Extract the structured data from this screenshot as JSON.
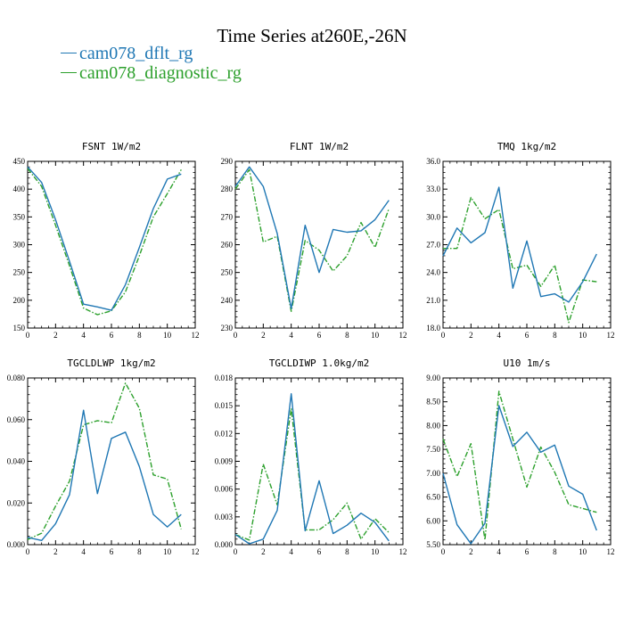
{
  "title": "Time Series at260E,-26N",
  "legend": [
    {
      "name": "cam078_dflt_rg",
      "color": "#1f77b4"
    },
    {
      "name": "cam078_diagnostic_rg",
      "color": "#2ca02c"
    }
  ],
  "chart_data": [
    {
      "type": "line",
      "title": "FSNT   1W/m2",
      "x": [
        0,
        1,
        2,
        3,
        4,
        5,
        6,
        7,
        8,
        9,
        10,
        11
      ],
      "xlim": [
        0,
        12
      ],
      "xticks": [
        "0",
        "2",
        "4",
        "6",
        "8",
        "10",
        "12"
      ],
      "ylim": [
        150,
        450
      ],
      "yticks": [
        "150",
        "200",
        "250",
        "300",
        "350",
        "400",
        "450"
      ],
      "series": [
        {
          "name": "cam078_dflt_rg",
          "values": [
            440,
            412,
            345,
            270,
            193,
            188,
            182,
            228,
            295,
            365,
            418,
            427
          ]
        },
        {
          "name": "cam078_diagnostic_rg",
          "values": [
            437,
            405,
            335,
            262,
            186,
            174,
            181,
            215,
            280,
            350,
            392,
            435
          ]
        }
      ]
    },
    {
      "type": "line",
      "title": "FLNT   1W/m2",
      "x": [
        0,
        1,
        2,
        3,
        4,
        5,
        6,
        7,
        8,
        9,
        10,
        11
      ],
      "xlim": [
        0,
        12
      ],
      "xticks": [
        "0",
        "2",
        "4",
        "6",
        "8",
        "10",
        "12"
      ],
      "ylim": [
        230,
        290
      ],
      "yticks": [
        "230",
        "240",
        "250",
        "260",
        "270",
        "280",
        "290"
      ],
      "series": [
        {
          "name": "cam078_dflt_rg",
          "values": [
            281,
            288,
            281,
            264,
            237,
            267,
            250,
            265.5,
            264.5,
            265,
            269,
            276
          ]
        },
        {
          "name": "cam078_diagnostic_rg",
          "values": [
            280,
            287,
            261,
            263,
            236,
            261.5,
            258,
            250.5,
            256,
            268,
            259,
            273
          ]
        }
      ]
    },
    {
      "type": "line",
      "title": "TMQ   1kg/m2",
      "x": [
        0,
        1,
        2,
        3,
        4,
        5,
        6,
        7,
        8,
        9,
        10,
        11
      ],
      "xlim": [
        0,
        12
      ],
      "xticks": [
        "0",
        "2",
        "4",
        "6",
        "8",
        "10",
        "12"
      ],
      "ylim": [
        18,
        36
      ],
      "yticks": [
        "18.0",
        "21.0",
        "24.0",
        "27.0",
        "30.0",
        "33.0",
        "36.0"
      ],
      "series": [
        {
          "name": "cam078_dflt_rg",
          "values": [
            25.8,
            28.8,
            27.2,
            28.3,
            33.2,
            22.3,
            27.4,
            21.4,
            21.7,
            20.8,
            23.0,
            26.0
          ]
        },
        {
          "name": "cam078_diagnostic_rg",
          "values": [
            26.6,
            26.6,
            32.1,
            29.8,
            30.8,
            24.4,
            24.8,
            22.5,
            24.8,
            18.6,
            23.2,
            23.0
          ]
        }
      ]
    },
    {
      "type": "line",
      "title": "TGCLDLWP   1kg/m2",
      "x": [
        0,
        1,
        2,
        3,
        4,
        5,
        6,
        7,
        8,
        9,
        10,
        11
      ],
      "xlim": [
        0,
        12
      ],
      "xticks": [
        "0",
        "2",
        "4",
        "6",
        "8",
        "10",
        "12"
      ],
      "ylim": [
        0,
        0.08
      ],
      "yticks": [
        "0.000",
        "0.020",
        "0.040",
        "0.060",
        "0.080"
      ],
      "series": [
        {
          "name": "cam078_dflt_rg",
          "values": [
            0.0035,
            0.002,
            0.01,
            0.024,
            0.0645,
            0.0245,
            0.051,
            0.054,
            0.0375,
            0.0145,
            0.0085,
            0.0145
          ]
        },
        {
          "name": "cam078_diagnostic_rg",
          "values": [
            0.0025,
            0.0055,
            0.0185,
            0.0305,
            0.0575,
            0.0595,
            0.0585,
            0.0775,
            0.0655,
            0.0335,
            0.0315,
            0.0075
          ]
        }
      ]
    },
    {
      "type": "line",
      "title": "TGCLDIWP   1.0kg/m2",
      "x": [
        0,
        1,
        2,
        3,
        4,
        5,
        6,
        7,
        8,
        9,
        10,
        11
      ],
      "xlim": [
        0,
        12
      ],
      "xticks": [
        "0",
        "2",
        "4",
        "6",
        "8",
        "10",
        "12"
      ],
      "ylim": [
        0,
        0.018
      ],
      "yticks": [
        "0.000",
        "0.003",
        "0.006",
        "0.009",
        "0.012",
        "0.015",
        "0.018"
      ],
      "series": [
        {
          "name": "cam078_dflt_rg",
          "values": [
            0.0011,
            0.0001,
            0.0006,
            0.0037,
            0.0163,
            0.0015,
            0.0069,
            0.0012,
            0.0021,
            0.0034,
            0.0024,
            0.0004
          ]
        },
        {
          "name": "cam078_diagnostic_rg",
          "values": [
            0.0011,
            0.0005,
            0.0087,
            0.0043,
            0.0147,
            0.0016,
            0.0016,
            0.0027,
            0.0045,
            0.0006,
            0.0028,
            0.0013
          ]
        }
      ]
    },
    {
      "type": "line",
      "title": "U10   1m/s",
      "x": [
        0,
        1,
        2,
        3,
        4,
        5,
        6,
        7,
        8,
        9,
        10,
        11
      ],
      "xlim": [
        0,
        12
      ],
      "xticks": [
        "0",
        "2",
        "4",
        "6",
        "8",
        "10",
        "12"
      ],
      "ylim": [
        5.5,
        9.0
      ],
      "yticks": [
        "5.50",
        "6.00",
        "6.50",
        "7.00",
        "7.50",
        "8.00",
        "8.50",
        "9.00"
      ],
      "series": [
        {
          "name": "cam078_dflt_rg",
          "values": [
            7.0,
            5.92,
            5.52,
            5.95,
            8.42,
            7.56,
            7.86,
            7.44,
            7.59,
            6.73,
            6.56,
            5.8
          ]
        },
        {
          "name": "cam078_diagnostic_rg",
          "values": [
            7.72,
            6.93,
            7.62,
            5.6,
            8.72,
            7.72,
            6.71,
            7.55,
            7.02,
            6.34,
            6.26,
            6.18
          ]
        }
      ]
    }
  ]
}
